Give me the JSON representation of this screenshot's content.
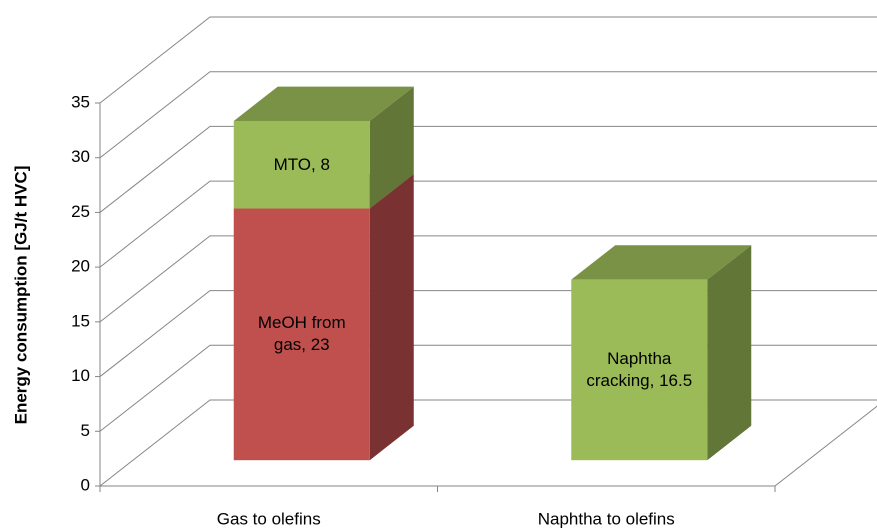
{
  "chart_data": {
    "type": "bar3d_stacked",
    "y_label": "Energy consumption [GJ/t HVC]",
    "categories": [
      "Gas to olefins",
      "Naphtha to olefins"
    ],
    "series": [
      {
        "color": "#c0504d",
        "values": [
          23,
          null
        ],
        "value_labels": [
          "MeOH from gas, 23",
          null
        ]
      },
      {
        "color": "#9bbb59",
        "values": [
          8,
          null
        ],
        "value_labels": [
          "MTO, 8",
          null
        ]
      },
      {
        "color": "#9bbb59",
        "values": [
          null,
          16.5
        ],
        "value_labels": [
          null,
          "Naphtha cracking, 16.5"
        ]
      }
    ],
    "ylim": [
      0,
      35
    ],
    "yticks": [
      0,
      5,
      10,
      15,
      20,
      25,
      30,
      35
    ],
    "grid": true,
    "legend": false
  }
}
